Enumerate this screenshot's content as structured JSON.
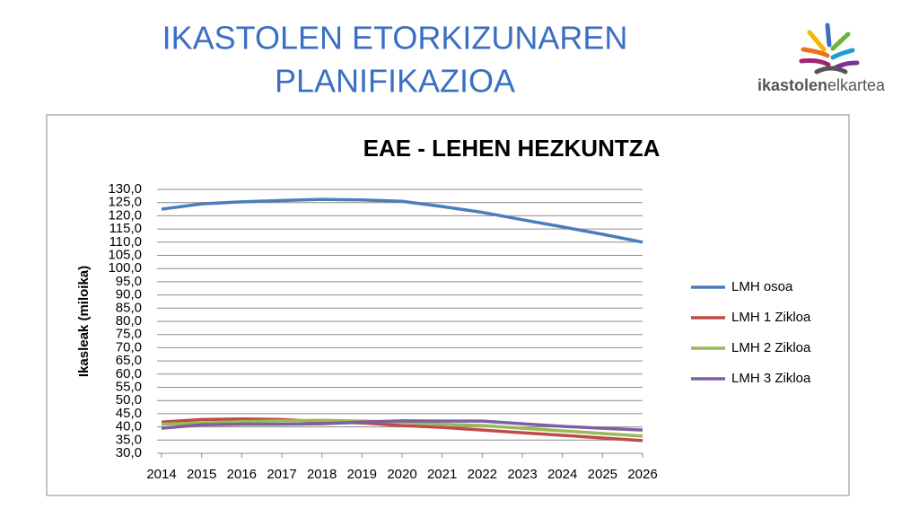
{
  "header": {
    "title_lines": [
      "IKASTOLEN ETORKIZUNAREN",
      "PLANIFIKAZIOA"
    ],
    "logo": {
      "bold": "ikastolen",
      "regular": "elkartea"
    }
  },
  "chart_data": {
    "type": "line",
    "title": "EAE - LEHEN HEZKUNTZA",
    "y_label": "Ikasleak (miloika)",
    "x": [
      2014,
      2015,
      2016,
      2017,
      2018,
      2019,
      2020,
      2021,
      2022,
      2023,
      2024,
      2025,
      2026
    ],
    "xlim": [
      2014,
      2026
    ],
    "ylim": [
      30,
      130
    ],
    "yticks": [
      {
        "value": 30,
        "label": "30,0"
      },
      {
        "value": 35,
        "label": "35,0"
      },
      {
        "value": 40,
        "label": "40,0"
      },
      {
        "value": 45,
        "label": "45,0"
      },
      {
        "value": 50,
        "label": "50,0"
      },
      {
        "value": 55,
        "label": "55,0"
      },
      {
        "value": 60,
        "label": "60,0"
      },
      {
        "value": 65,
        "label": "65,0"
      },
      {
        "value": 70,
        "label": "70,0"
      },
      {
        "value": 75,
        "label": "75,0"
      },
      {
        "value": 80,
        "label": "80,0"
      },
      {
        "value": 85,
        "label": "85,0"
      },
      {
        "value": 90,
        "label": "90,0"
      },
      {
        "value": 95,
        "label": "95,0"
      },
      {
        "value": 100,
        "label": "100,0"
      },
      {
        "value": 105,
        "label": "105,0"
      },
      {
        "value": 110,
        "label": "110,0"
      },
      {
        "value": 115,
        "label": "115,0"
      },
      {
        "value": 120,
        "label": "120,0"
      },
      {
        "value": 125,
        "label": "125,0"
      },
      {
        "value": 130,
        "label": "130,0"
      }
    ],
    "grid": true,
    "legend": "right",
    "series": [
      {
        "name": "LMH osoa",
        "color": "#4a7ebb",
        "values": [
          122.5,
          124.5,
          125.3,
          125.8,
          126.2,
          126,
          125.5,
          123.5,
          121.3,
          118.5,
          115.8,
          113,
          110
        ]
      },
      {
        "name": "LMH 1 Zikloa",
        "color": "#be4b48",
        "values": [
          41.8,
          42.8,
          43,
          42.8,
          42,
          41.5,
          40.5,
          39.8,
          38.8,
          37.8,
          36.8,
          35.8,
          34.8
        ]
      },
      {
        "name": "LMH 2 Zikloa",
        "color": "#98b954",
        "values": [
          41,
          41.5,
          42,
          42.3,
          42.5,
          42.2,
          41.8,
          41,
          40.5,
          39.5,
          38.5,
          37.5,
          36.5
        ]
      },
      {
        "name": "LMH 3 Zikloa",
        "color": "#7d60a0",
        "values": [
          39.5,
          40.8,
          41,
          41,
          41.2,
          41.8,
          42.3,
          42.2,
          42.2,
          41.2,
          40.2,
          39.5,
          38.8
        ]
      }
    ]
  }
}
